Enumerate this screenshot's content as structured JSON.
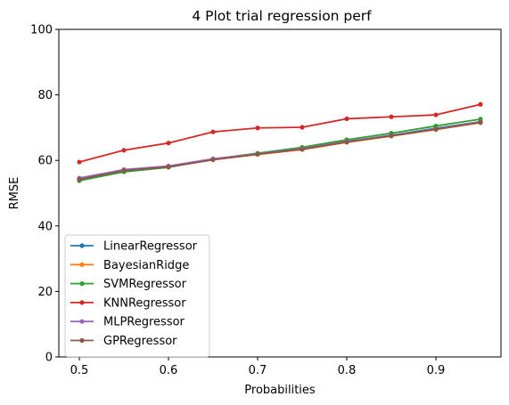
{
  "chart_data": {
    "type": "line",
    "title": "4 Plot trial regression perf",
    "xlabel": "Probabilities",
    "ylabel": "RMSE",
    "xlim": [
      0.477,
      0.973
    ],
    "ylim": [
      0,
      100
    ],
    "xticks": [
      "0.5",
      "0.6",
      "0.7",
      "0.8",
      "0.9"
    ],
    "yticks": [
      "0",
      "20",
      "40",
      "60",
      "80",
      "100"
    ],
    "grid": false,
    "legend_position": "lower-left",
    "x": [
      0.5,
      0.55,
      0.6,
      0.65,
      0.7,
      0.75,
      0.8,
      0.85,
      0.9,
      0.95
    ],
    "series": [
      {
        "name": "LinearRegressor",
        "color": "#1f77b4",
        "values": [
          54.2,
          56.9,
          58.1,
          60.3,
          62.0,
          63.6,
          65.8,
          67.7,
          69.8,
          71.8
        ]
      },
      {
        "name": "BayesianRidge",
        "color": "#ff7f0e",
        "values": [
          54.2,
          56.9,
          58.0,
          60.2,
          61.8,
          63.3,
          65.5,
          67.4,
          69.4,
          71.5
        ]
      },
      {
        "name": "SVMRegressor",
        "color": "#2ca02c",
        "values": [
          53.8,
          56.5,
          57.9,
          60.4,
          62.2,
          64.0,
          66.3,
          68.3,
          70.5,
          72.6
        ]
      },
      {
        "name": "KNNRegressor",
        "color": "#d62728",
        "values": [
          59.5,
          63.1,
          65.3,
          68.7,
          69.9,
          70.1,
          72.7,
          73.3,
          73.9,
          77.1
        ]
      },
      {
        "name": "MLPRegressor",
        "color": "#9467bd",
        "values": [
          54.6,
          57.2,
          58.3,
          60.5,
          62.0,
          63.6,
          65.8,
          67.6,
          69.6,
          71.8
        ]
      },
      {
        "name": "GPRegressor",
        "color": "#8c564b",
        "values": [
          54.2,
          56.9,
          58.0,
          60.2,
          61.9,
          63.4,
          65.6,
          67.5,
          69.5,
          71.6
        ]
      }
    ]
  }
}
